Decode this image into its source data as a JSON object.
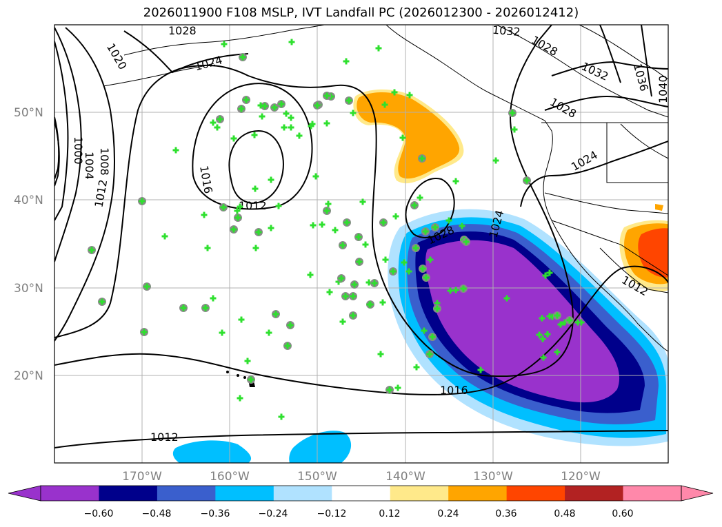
{
  "title": "2026011900 F108 MSLP, IVT Landfall PC (2026012300 - 2026012412)",
  "map": {
    "lat_labels": [
      "50°N",
      "40°N",
      "30°N",
      "20°N"
    ],
    "lon_labels": [
      "170°W",
      "160°W",
      "150°W",
      "140°W",
      "130°W",
      "120°W"
    ],
    "grid": true,
    "contour_labels": [
      "1028",
      "1020",
      "1024",
      "1000",
      "1004",
      "1008",
      "1012",
      "1016",
      "1012",
      "1028",
      "1024",
      "1016",
      "1012",
      "1032",
      "1028",
      "1032",
      "1036",
      "1040",
      "1028",
      "1024",
      "1012"
    ]
  },
  "colorbar": {
    "ticks": [
      "−0.60",
      "−0.48",
      "−0.36",
      "−0.24",
      "−0.12",
      "0.12",
      "0.24",
      "0.36",
      "0.48",
      "0.60"
    ],
    "colors": [
      "#9932CC",
      "#00008B",
      "#3A5FCD",
      "#00BFFF",
      "#B0E2FF",
      "#FFFFFF",
      "#FFE98A",
      "#FFA500",
      "#FF4500",
      "#B22222",
      "#FF88AA"
    ],
    "extend": "both"
  }
}
